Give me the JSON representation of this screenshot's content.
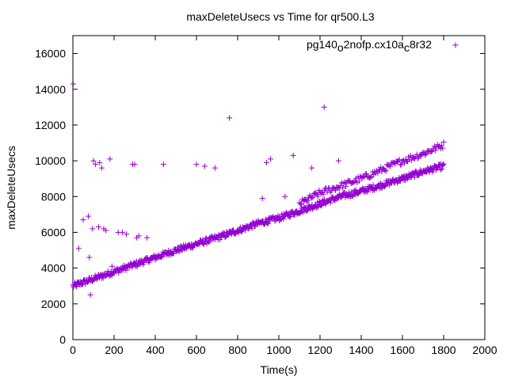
{
  "chart_data": {
    "type": "scatter",
    "title": "maxDeleteUsecs vs Time for qr500.L3",
    "xlabel": "Time(s)",
    "ylabel": "maxDeleteUsecs",
    "xlim": [
      0,
      2000
    ],
    "ylim": [
      0,
      17000
    ],
    "x_ticks": [
      "0",
      "200",
      "400",
      "600",
      "800",
      "1000",
      "1200",
      "1400",
      "1600",
      "1800",
      "2000"
    ],
    "y_ticks": [
      "0",
      "2000",
      "4000",
      "6000",
      "8000",
      "10000",
      "12000",
      "14000",
      "16000"
    ],
    "grid": false,
    "legend_position": "top-right",
    "series": [
      {
        "name": "pg140_o2nofp.cx10a_c8r32",
        "color": "#9400d3",
        "marker": "plus",
        "outliers": {
          "x": [
            2,
            15,
            28,
            50,
            75,
            80,
            85,
            95,
            100,
            110,
            125,
            130,
            140,
            150,
            160,
            180,
            190,
            220,
            240,
            260,
            290,
            300,
            310,
            320,
            360,
            440,
            600,
            640,
            690,
            760,
            920,
            940,
            960,
            1030,
            1070,
            1160,
            1220,
            1290
          ],
          "y": [
            14300,
            3000,
            5100,
            6700,
            6900,
            4600,
            2500,
            6200,
            10000,
            9800,
            6300,
            9900,
            9600,
            6200,
            6100,
            10100,
            4100,
            6000,
            6000,
            5900,
            9800,
            9800,
            5700,
            5800,
            5700,
            9800,
            9800,
            9700,
            9600,
            12400,
            7900,
            9900,
            10100,
            8000,
            10300,
            9600,
            13000,
            10000
          ]
        },
        "trend_main": {
          "x": [
            0,
            100,
            200,
            300,
            400,
            500,
            600,
            700,
            800,
            900,
            1000,
            1100,
            1150,
            1200,
            1300,
            1400,
            1500,
            1600,
            1700,
            1800
          ],
          "y": [
            3000,
            3400,
            3800,
            4200,
            4600,
            5000,
            5350,
            5700,
            6100,
            6500,
            6800,
            7200,
            7400,
            7600,
            8000,
            8300,
            8650,
            9000,
            9400,
            9700
          ]
        },
        "trend_upper": {
          "x": [
            1100,
            1200,
            1300,
            1400,
            1500,
            1600,
            1700,
            1800
          ],
          "y": [
            7600,
            8200,
            8600,
            9000,
            9500,
            10000,
            10400,
            10900
          ]
        }
      }
    ]
  }
}
